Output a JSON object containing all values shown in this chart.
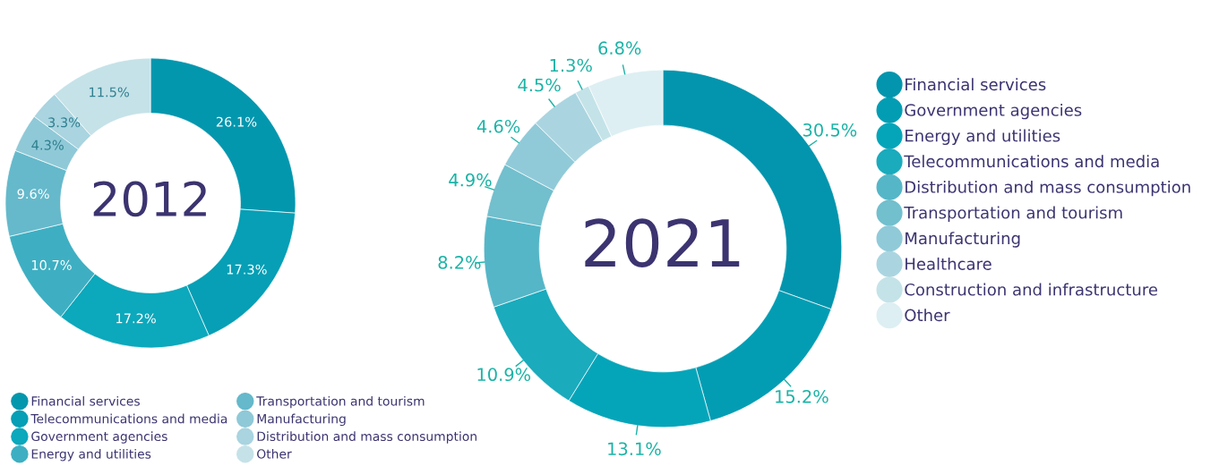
{
  "chart_data": [
    {
      "type": "donut",
      "title": "2012",
      "legend": "bottom",
      "categories": [
        "Financial services",
        "Telecommunications and media",
        "Government agencies",
        "Energy and utilities",
        "Transportation and tourism",
        "Manufacturing",
        "Distribution and mass consumption",
        "Other"
      ],
      "values": [
        26.1,
        17.3,
        17.2,
        10.7,
        9.6,
        4.3,
        3.3,
        11.5
      ],
      "value_labels": [
        "26.1%",
        "17.3%",
        "17.2%",
        "10.7%",
        "9.6%",
        "4.3%",
        "3.3%",
        "11.5%"
      ],
      "colors": [
        "#0397ae",
        "#069fb5",
        "#0ca8bc",
        "#3eafc2",
        "#65b9cb",
        "#8fc9d7",
        "#a9d4e0",
        "#c5e2e8"
      ]
    },
    {
      "type": "donut",
      "title": "2021",
      "legend": "right",
      "categories": [
        "Financial services",
        "Government agencies",
        "Energy and utilities",
        "Telecommunications and media",
        "Distribution and mass consumption",
        "Transportation and tourism",
        "Manufacturing",
        "Healthcare",
        "Construction and infrastructure",
        "Other"
      ],
      "values": [
        30.5,
        15.2,
        13.1,
        10.9,
        8.2,
        4.9,
        4.6,
        4.5,
        1.3,
        6.8
      ],
      "value_labels": [
        "30.5%",
        "15.2%",
        "13.1%",
        "10.9%",
        "8.2%",
        "4.9%",
        "4.6%",
        "4.5%",
        "1.3%",
        "6.8%"
      ],
      "colors": [
        "#0395ad",
        "#039db3",
        "#05a5b9",
        "#1aabbd",
        "#55b6c7",
        "#72bfcd",
        "#90cad8",
        "#aad5e0",
        "#c4e3e8",
        "#ddeff3"
      ]
    }
  ]
}
